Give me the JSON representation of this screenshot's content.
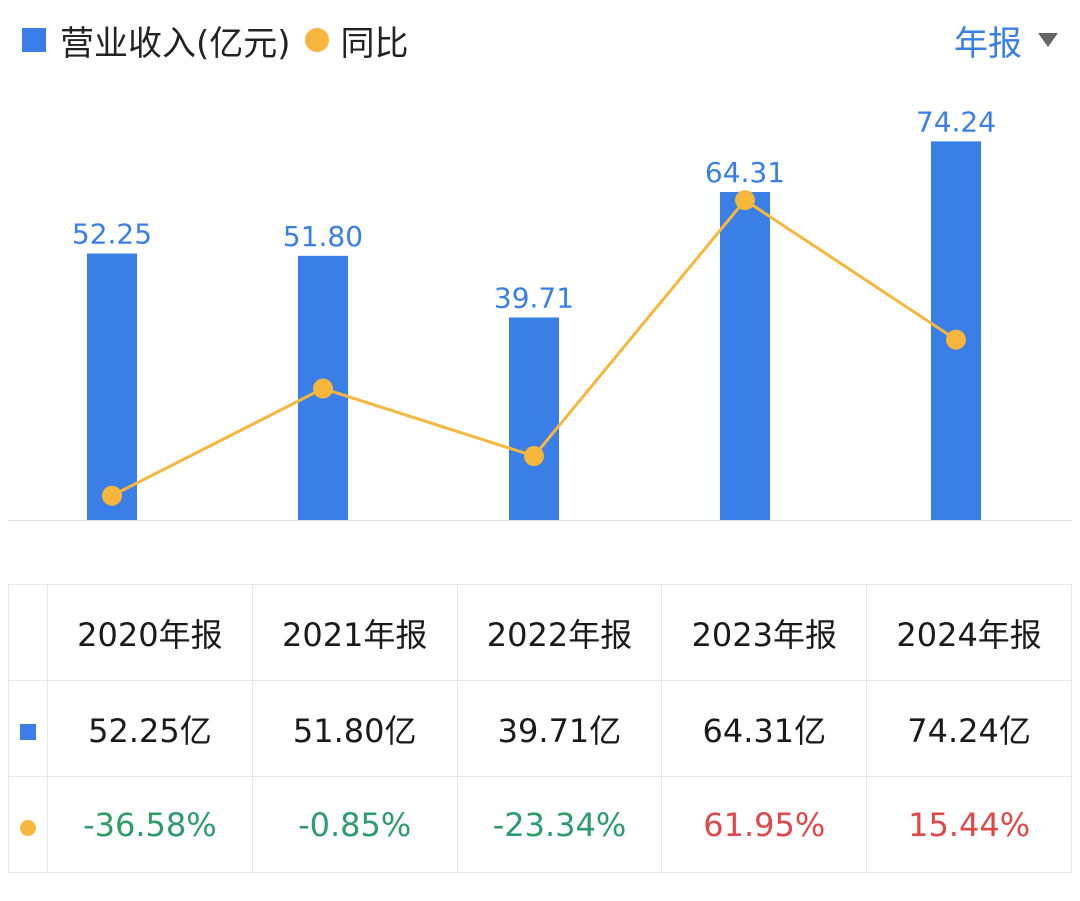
{
  "legend": {
    "series1_label": "营业收入(亿元)",
    "series2_label": "同比"
  },
  "period_selector": {
    "label": "年报"
  },
  "colors": {
    "bar": "#3a7ee8",
    "line": "#f6b73c",
    "negative": "#2e9c6a",
    "positive": "#e04848"
  },
  "chart_data": {
    "type": "bar",
    "categories": [
      "2020年报",
      "2021年报",
      "2022年报",
      "2023年报",
      "2024年报"
    ],
    "series": [
      {
        "name": "营业收入(亿元)",
        "type": "bar",
        "values": [
          52.25,
          51.8,
          39.71,
          64.31,
          74.24
        ]
      },
      {
        "name": "同比",
        "type": "line",
        "values": [
          -36.58,
          -0.85,
          -23.34,
          61.95,
          15.44
        ]
      }
    ],
    "data_labels": [
      "52.25",
      "51.80",
      "39.71",
      "64.31",
      "74.24"
    ]
  },
  "table": {
    "headers": [
      "2020年报",
      "2021年报",
      "2022年报",
      "2023年报",
      "2024年报"
    ],
    "revenue_row": [
      "52.25亿",
      "51.80亿",
      "39.71亿",
      "64.31亿",
      "74.24亿"
    ],
    "yoy_row": [
      "-36.58%",
      "-0.85%",
      "-23.34%",
      "61.95%",
      "15.44%"
    ]
  }
}
